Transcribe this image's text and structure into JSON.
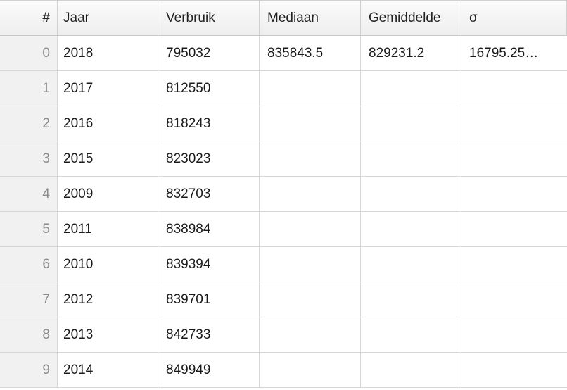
{
  "columns": [
    "#",
    "Jaar",
    "Verbruik",
    "Mediaan",
    "Gemiddelde",
    "σ"
  ],
  "rows": [
    {
      "index": "0",
      "jaar": "2018",
      "verbruik": "795032",
      "mediaan": "835843.5",
      "gemiddelde": "829231.2",
      "sigma": "16795.25…"
    },
    {
      "index": "1",
      "jaar": "2017",
      "verbruik": "812550",
      "mediaan": "",
      "gemiddelde": "",
      "sigma": ""
    },
    {
      "index": "2",
      "jaar": "2016",
      "verbruik": "818243",
      "mediaan": "",
      "gemiddelde": "",
      "sigma": ""
    },
    {
      "index": "3",
      "jaar": "2015",
      "verbruik": "823023",
      "mediaan": "",
      "gemiddelde": "",
      "sigma": ""
    },
    {
      "index": "4",
      "jaar": "2009",
      "verbruik": "832703",
      "mediaan": "",
      "gemiddelde": "",
      "sigma": ""
    },
    {
      "index": "5",
      "jaar": "2011",
      "verbruik": "838984",
      "mediaan": "",
      "gemiddelde": "",
      "sigma": ""
    },
    {
      "index": "6",
      "jaar": "2010",
      "verbruik": "839394",
      "mediaan": "",
      "gemiddelde": "",
      "sigma": ""
    },
    {
      "index": "7",
      "jaar": "2012",
      "verbruik": "839701",
      "mediaan": "",
      "gemiddelde": "",
      "sigma": ""
    },
    {
      "index": "8",
      "jaar": "2013",
      "verbruik": "842733",
      "mediaan": "",
      "gemiddelde": "",
      "sigma": ""
    },
    {
      "index": "9",
      "jaar": "2014",
      "verbruik": "849949",
      "mediaan": "",
      "gemiddelde": "",
      "sigma": ""
    }
  ]
}
